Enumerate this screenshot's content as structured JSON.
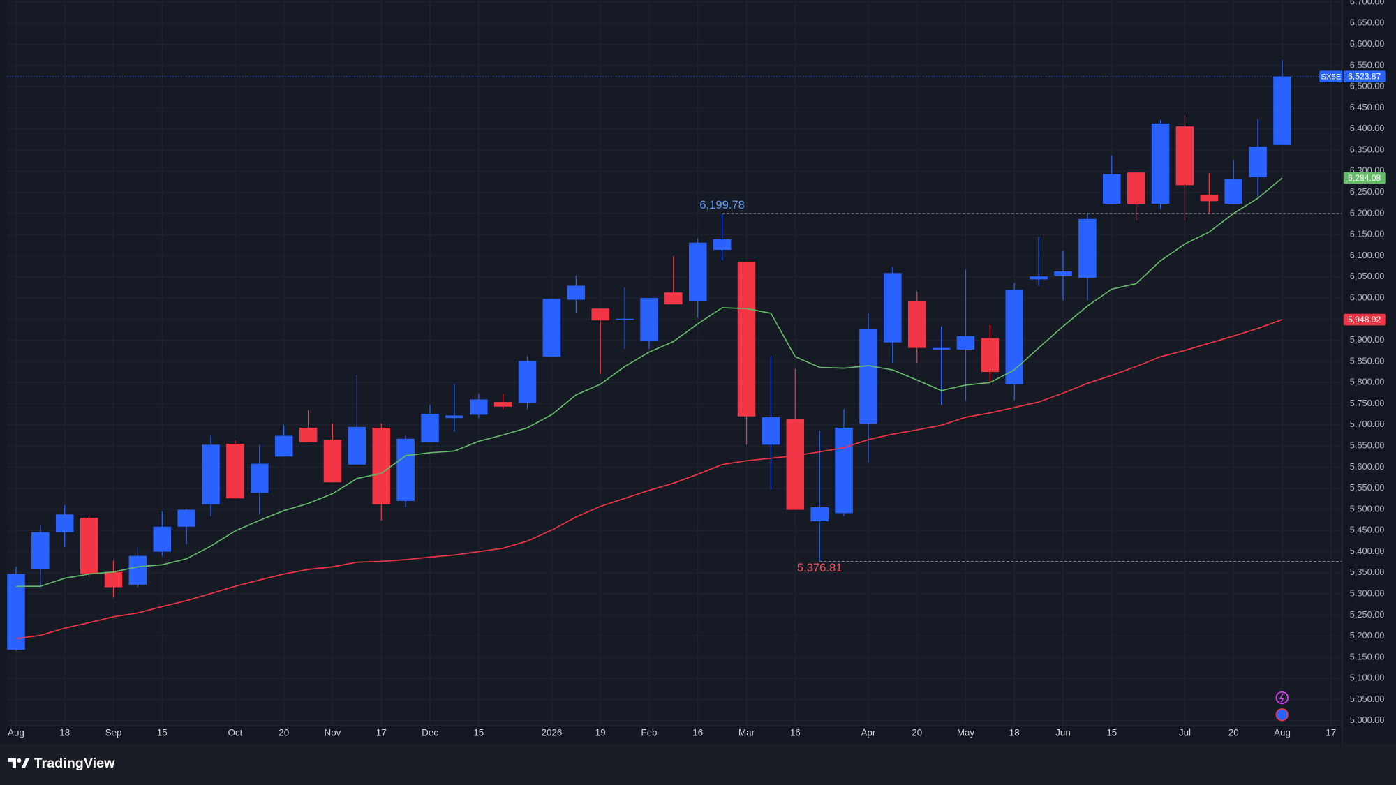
{
  "brand": "TradingView",
  "chart_data": {
    "type": "candlestick",
    "symbol": "SX5E",
    "last_label": "6,523.87",
    "up_color": "#2962ff",
    "down_color": "#f23645",
    "grid": true,
    "categories": [
      "Aug",
      null,
      "18",
      null,
      "Sep",
      null,
      "15",
      null,
      null,
      "Oct",
      null,
      "20",
      null,
      "Nov",
      null,
      "17",
      null,
      "Dec",
      null,
      "15",
      null,
      null,
      "2026",
      null,
      "19",
      null,
      "Feb",
      null,
      "16",
      null,
      "Mar",
      null,
      "16",
      null,
      null,
      "Apr",
      null,
      "20",
      null,
      "May",
      null,
      "18",
      null,
      "Jun",
      null,
      "15",
      null,
      null,
      "Jul",
      null,
      "20",
      null,
      "Aug",
      null,
      "17"
    ],
    "open": [
      5168,
      5358,
      5446,
      5480,
      5352,
      5322,
      5400,
      5459,
      5512,
      5655,
      5539,
      5625,
      5693,
      5665,
      5606,
      5693,
      5520,
      5659,
      5716,
      5724,
      5754,
      5752,
      5861,
      5996,
      5975,
      5948,
      5899,
      6013,
      5992,
      6114,
      6086,
      5653,
      5714,
      5472,
      5491,
      5703,
      5895,
      5992,
      5878,
      5878,
      5905,
      5796,
      6044,
      6053,
      6048,
      6223,
      6297,
      6223,
      6406,
      6244,
      6223,
      6286,
      6362,
      null,
      null
    ],
    "high": [
      5364,
      5463,
      5510,
      5485,
      5379,
      5411,
      5495,
      5501,
      5674,
      5663,
      5653,
      5699,
      5735,
      5703,
      5819,
      5703,
      5674,
      5747,
      5796,
      5773,
      5773,
      5863,
      5998,
      6053,
      5975,
      6025,
      6000,
      6099,
      6141,
      6199.78,
      6086,
      5863,
      5832,
      5686,
      5737,
      5964,
      6074,
      6015,
      5933,
      6067,
      5937,
      6036,
      6145,
      6112,
      6200,
      6337,
      6297,
      6421,
      6432,
      6295,
      6326,
      6423,
      6562,
      null,
      null
    ],
    "low": [
      5165,
      5316,
      5411,
      5340,
      5291,
      5316,
      5390,
      5417,
      5484,
      5526,
      5488,
      5625,
      5659,
      5564,
      5606,
      5474,
      5505,
      5659,
      5684,
      5716,
      5737,
      5737,
      5861,
      5966,
      5821,
      5880,
      5880,
      5985,
      5954,
      6088,
      5653,
      5547,
      5499,
      5376.81,
      5484,
      5611,
      5846,
      5846,
      5747,
      5758,
      5800,
      5758,
      6029,
      5994,
      5994,
      6223,
      6183,
      6211,
      6183,
      6200,
      6223,
      6240,
      6362,
      null,
      null
    ],
    "close": [
      5347,
      5446,
      5488,
      5347,
      5316,
      5390,
      5459,
      5499,
      5653,
      5526,
      5608,
      5674,
      5659,
      5564,
      5695,
      5512,
      5667,
      5726,
      5722,
      5760,
      5743,
      5851,
      5998,
      6029,
      5947,
      5951,
      6000,
      5985,
      6131,
      6139,
      5720,
      5718,
      5499,
      5505,
      5693,
      5926,
      6059,
      5882,
      5882,
      5910,
      5825,
      6019,
      6051,
      6063,
      6187,
      6293,
      6223,
      6413,
      6267,
      6229,
      6282,
      6358,
      6523.87,
      null,
      null
    ],
    "ma_lines": [
      {
        "color": "#66bb6a",
        "last_label": "6,284.08",
        "values": [
          5318,
          5318,
          5337,
          5347,
          5352,
          5364,
          5369,
          5383,
          5413,
          5449,
          5474,
          5497,
          5514,
          5537,
          5573,
          5585,
          5627,
          5634,
          5638,
          5661,
          5676,
          5693,
          5724,
          5771,
          5796,
          5838,
          5872,
          5897,
          5939,
          5977,
          5975,
          5964,
          5861,
          5836,
          5834,
          5840,
          5830,
          5806,
          5781,
          5794,
          5800,
          5830,
          5882,
          5933,
          5981,
          6021,
          6034,
          6088,
          6128,
          6156,
          6200,
          6236,
          6284.08,
          null,
          null
        ]
      },
      {
        "color": "#f23645",
        "last_label": "5,948.92",
        "values": [
          5194,
          5202,
          5219,
          5232,
          5246,
          5255,
          5270,
          5284,
          5301,
          5318,
          5333,
          5347,
          5358,
          5364,
          5375,
          5377,
          5381,
          5387,
          5392,
          5400,
          5408,
          5425,
          5451,
          5482,
          5507,
          5526,
          5545,
          5562,
          5583,
          5606,
          5615,
          5621,
          5627,
          5636,
          5646,
          5665,
          5678,
          5688,
          5699,
          5718,
          5728,
          5741,
          5754,
          5775,
          5798,
          5817,
          5838,
          5861,
          5876,
          5893,
          5910,
          5928,
          5948.92,
          null,
          null
        ]
      }
    ],
    "high_marker": {
      "value": 6199.78,
      "label": "6,199.78",
      "color": "#5b9cf6"
    },
    "low_marker": {
      "value": 5376.81,
      "label": "5,376.81",
      "color": "#f7525f"
    },
    "ylim": [
      4989,
      6705
    ],
    "yticks": [
      {
        "value": 5000,
        "label": "5,000.00"
      },
      {
        "value": 5050,
        "label": "5,050.00"
      },
      {
        "value": 5100,
        "label": "5,100.00"
      },
      {
        "value": 5150,
        "label": "5,150.00"
      },
      {
        "value": 5200,
        "label": "5,200.00"
      },
      {
        "value": 5250,
        "label": "5,250.00"
      },
      {
        "value": 5300,
        "label": "5,300.00"
      },
      {
        "value": 5350,
        "label": "5,350.00"
      },
      {
        "value": 5400,
        "label": "5,400.00"
      },
      {
        "value": 5450,
        "label": "5,450.00"
      },
      {
        "value": 5500,
        "label": "5,500.00"
      },
      {
        "value": 5550,
        "label": "5,550.00"
      },
      {
        "value": 5600,
        "label": "5,600.00"
      },
      {
        "value": 5650,
        "label": "5,650.00"
      },
      {
        "value": 5700,
        "label": "5,700.00"
      },
      {
        "value": 5750,
        "label": "5,750.00"
      },
      {
        "value": 5800,
        "label": "5,800.00"
      },
      {
        "value": 5850,
        "label": "5,850.00"
      },
      {
        "value": 5900,
        "label": "5,900.00"
      },
      {
        "value": 5950,
        "label": "5,950.00"
      },
      {
        "value": 6000,
        "label": "6,000.00"
      },
      {
        "value": 6050,
        "label": "6,050.00"
      },
      {
        "value": 6100,
        "label": "6,100.00"
      },
      {
        "value": 6150,
        "label": "6,150.00"
      },
      {
        "value": 6200,
        "label": "6,200.00"
      },
      {
        "value": 6250,
        "label": "6,250.00"
      },
      {
        "value": 6300,
        "label": "6,300.00"
      },
      {
        "value": 6350,
        "label": "6,350.00"
      },
      {
        "value": 6400,
        "label": "6,400.00"
      },
      {
        "value": 6450,
        "label": "6,450.00"
      },
      {
        "value": 6500,
        "label": "6,500.00"
      },
      {
        "value": 6550,
        "label": "6,550.00"
      },
      {
        "value": 6600,
        "label": "6,600.00"
      },
      {
        "value": 6650,
        "label": "6,650.00"
      },
      {
        "value": 6700,
        "label": "6,700.00"
      }
    ]
  }
}
